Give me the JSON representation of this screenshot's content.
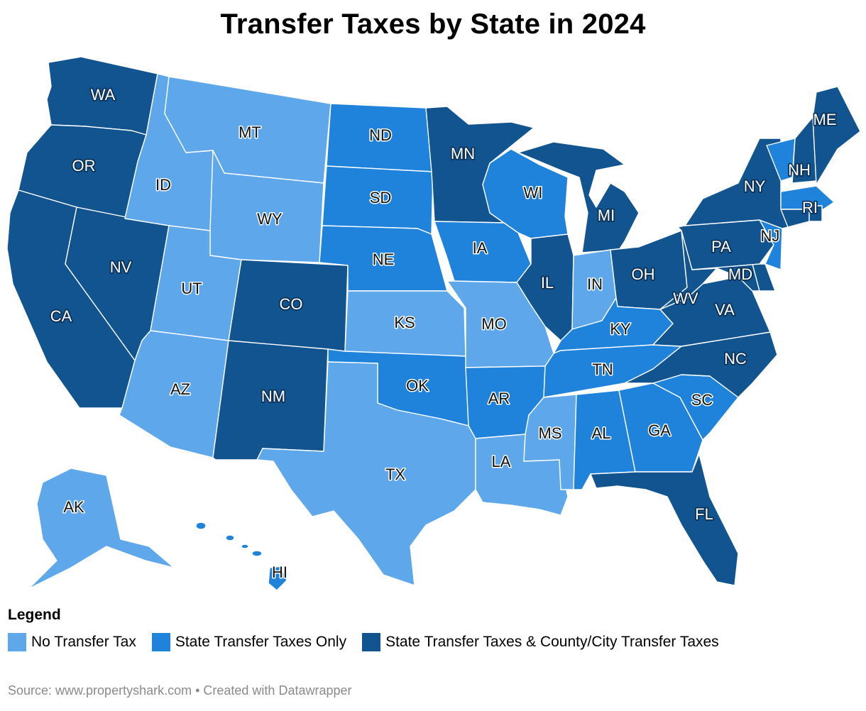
{
  "title": "Transfer Taxes by State in 2024",
  "legend": {
    "title": "Legend",
    "items": [
      {
        "label": "No Transfer Tax",
        "color": "#5ea7ea"
      },
      {
        "label": "State Transfer Taxes Only",
        "color": "#1f83db"
      },
      {
        "label": "State Transfer Taxes & County/City Transfer Taxes",
        "color": "#11548f"
      }
    ]
  },
  "source": "Source: www.propertyshark.com • Created with Datawrapper",
  "states": {
    "WA": {
      "label": "WA",
      "category": 2
    },
    "OR": {
      "label": "OR",
      "category": 2
    },
    "CA": {
      "label": "CA",
      "category": 2
    },
    "NV": {
      "label": "NV",
      "category": 2
    },
    "ID": {
      "label": "ID",
      "category": 0
    },
    "MT": {
      "label": "MT",
      "category": 0
    },
    "WY": {
      "label": "WY",
      "category": 0
    },
    "UT": {
      "label": "UT",
      "category": 0
    },
    "AZ": {
      "label": "AZ",
      "category": 0
    },
    "CO": {
      "label": "CO",
      "category": 2
    },
    "NM": {
      "label": "NM",
      "category": 2
    },
    "ND": {
      "label": "ND",
      "category": 1
    },
    "SD": {
      "label": "SD",
      "category": 1
    },
    "NE": {
      "label": "NE",
      "category": 1
    },
    "KS": {
      "label": "KS",
      "category": 0
    },
    "OK": {
      "label": "OK",
      "category": 1
    },
    "TX": {
      "label": "TX",
      "category": 0
    },
    "MN": {
      "label": "MN",
      "category": 2
    },
    "IA": {
      "label": "IA",
      "category": 1
    },
    "MO": {
      "label": "MO",
      "category": 0
    },
    "AR": {
      "label": "AR",
      "category": 1
    },
    "LA": {
      "label": "LA",
      "category": 0
    },
    "WI": {
      "label": "WI",
      "category": 1
    },
    "IL": {
      "label": "IL",
      "category": 2
    },
    "MI": {
      "label": "MI",
      "category": 2
    },
    "IN": {
      "label": "IN",
      "category": 0
    },
    "OH": {
      "label": "OH",
      "category": 2
    },
    "KY": {
      "label": "KY",
      "category": 1
    },
    "TN": {
      "label": "TN",
      "category": 1
    },
    "MS": {
      "label": "MS",
      "category": 0
    },
    "AL": {
      "label": "AL",
      "category": 1
    },
    "GA": {
      "label": "GA",
      "category": 1
    },
    "FL": {
      "label": "FL",
      "category": 2
    },
    "SC": {
      "label": "SC",
      "category": 1
    },
    "NC": {
      "label": "NC",
      "category": 2
    },
    "VA": {
      "label": "VA",
      "category": 2
    },
    "WV": {
      "label": "WV",
      "category": 2
    },
    "MD": {
      "label": "MD",
      "category": 2
    },
    "DE": {
      "label": "",
      "category": 2
    },
    "PA": {
      "label": "PA",
      "category": 2
    },
    "NJ": {
      "label": "NJ",
      "category": 1
    },
    "NY": {
      "label": "NY",
      "category": 2
    },
    "CT": {
      "label": "",
      "category": 2
    },
    "RI": {
      "label": "RI",
      "category": 2
    },
    "MA": {
      "label": "",
      "category": 1
    },
    "VT": {
      "label": "",
      "category": 1
    },
    "NH": {
      "label": "NH",
      "category": 2
    },
    "ME": {
      "label": "ME",
      "category": 2
    },
    "AK": {
      "label": "AK",
      "category": 0
    },
    "HI": {
      "label": "HI",
      "category": 1
    }
  }
}
